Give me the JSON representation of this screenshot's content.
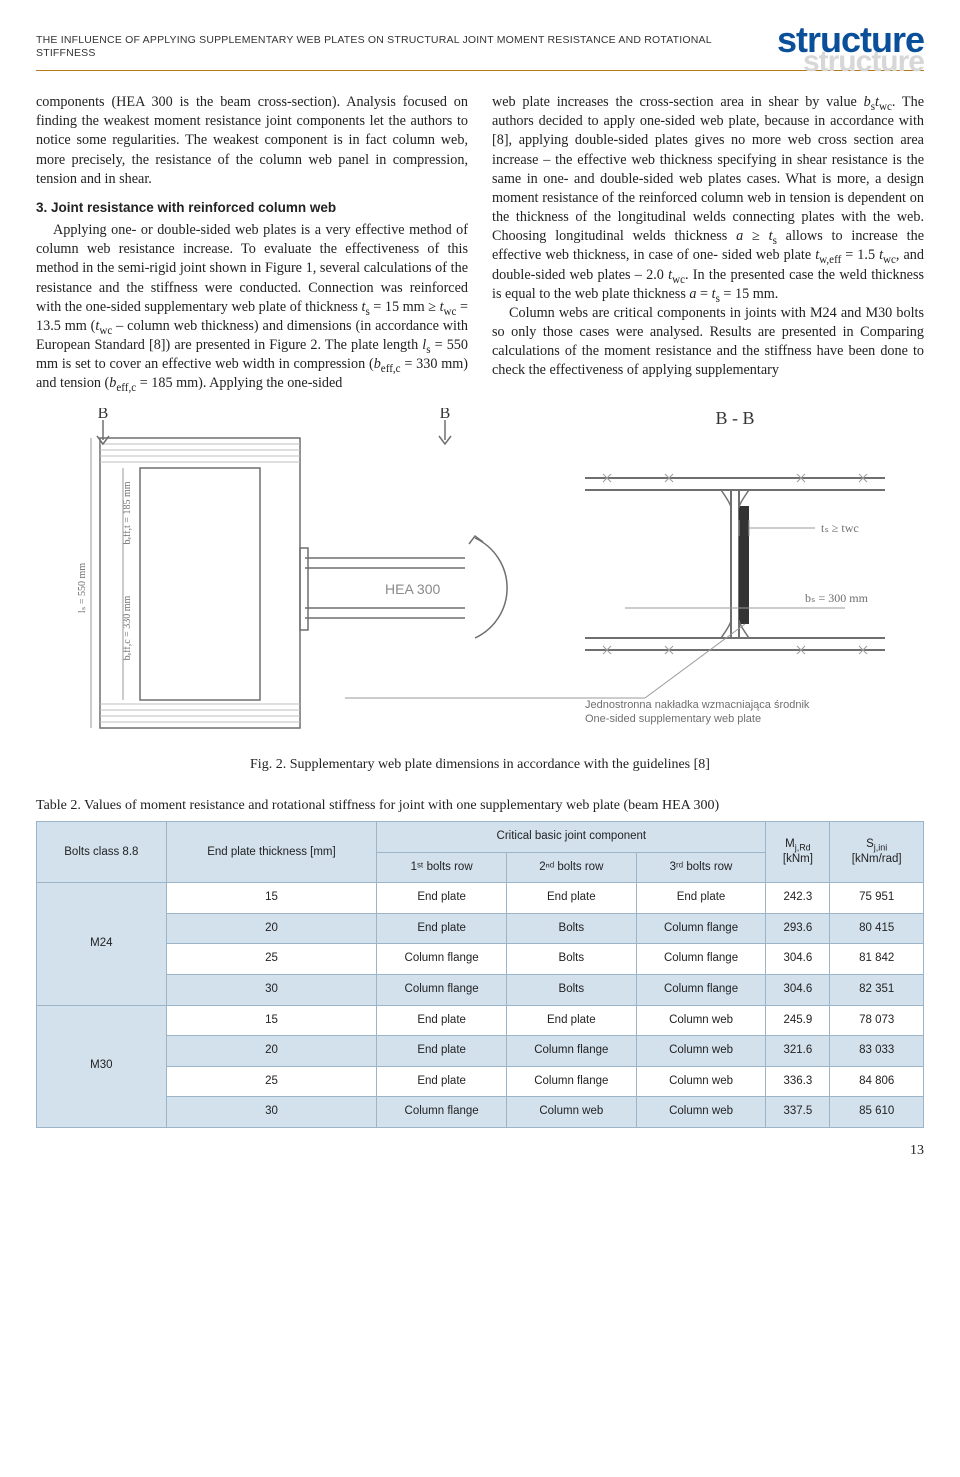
{
  "header": {
    "running_title": "THE INFLUENCE OF APPLYING SUPPLEMENTARY WEB PLATES ON STRUCTURAL JOINT MOMENT RESISTANCE AND ROTATIONAL STIFFNESS",
    "brand": "structure",
    "brand_shadow": "structure",
    "brand_color": "#0a4f9a",
    "rule_color": "#b47b1c"
  },
  "body": {
    "p1": "components (HEA 300 is the beam cross-section). Analysis focused on finding the weakest moment resistance joint components let the authors to notice some regularities. The weakest component is in fact column web, more precisely, the resistance of the column web panel in compression, tension and in shear.",
    "h3": "3. Joint resistance with reinforced column web",
    "p2a": "Applying one- or double-sided web plates is a very effective method of column web resistance increase. To evaluate the effectiveness of this method in the semi-rigid joint shown in Figure 1, several calculations of the resistance and the stiffness were conducted. Connection was reinforced with the one-sided supplementary web plate of thickness ",
    "p2b": " = 15 mm ≥ ",
    "p2c": " = 13.5 mm (",
    "p2d": " – column web thickness) and dimensions (in accordance with European Standard [8]) are presented in Figure 2. The plate length ",
    "p2e": " = 550 mm is set to cover an effective web width in compression (",
    "p2f": " = 330 mm) and tension (",
    "p2g": " = 185 mm). Applying the one-sided ",
    "p3a": "web plate increases the cross-section area in shear by value ",
    "p3b": ". The authors decided to apply one-sided web plate, because in accordance with [8], applying double-sided plates gives no more web cross section area increase – the effective web thickness specifying in shear resistance is the same in one- and double-sided web plates cases. What is more, a design moment resistance of the reinforced column web in tension is dependent on the thickness of the longitudinal welds connecting plates with the web. Choosing longitudinal welds thickness ",
    "p3c": " allows to increase the effective web thickness, in case of one- sided web plate ",
    "p3d": " = 1.5 ",
    "p3e": ", and double-sided web plates – 2.0 ",
    "p3f": ". In the presented case the weld thickness is equal to the web plate thickness ",
    "p3g": " = 15 mm.",
    "p4": "Column webs are critical components in joints with M24 and M30 bolts so only those cases were analysed. Results are presented in Comparing calculations of the moment resistance and the stiffness have been done to check the effectiveness of applying supplementary"
  },
  "figure": {
    "label_B": "B",
    "label_BB": "B - B",
    "hea": "HEA 300",
    "bs": "bₛ = 300 mm",
    "ts": "tₛ ≥ twc",
    "ls": "lₛ = 550 mm",
    "beffc": "bₑff,c = 330 mm",
    "befft": "bₑff,t = 185 mm",
    "note_pl": "Jednostronna nakładka wzmacniająca środnik",
    "note_en": "One-sided supplementary web plate",
    "caption": "Fig. 2. Supplementary web plate dimensions in accordance with the guidelines [8]",
    "colors": {
      "stroke": "#6f6f6f",
      "hatch": "#9a9a9a",
      "text": "#6f6f6f",
      "light": "#bfbfbf"
    }
  },
  "table": {
    "caption": "Table 2. Values of moment resistance and rotational stiffness for joint with one supplementary web plate (beam HEA 300)",
    "head": {
      "bolts": "Bolts class 8.8",
      "endplate": "End plate thickness [mm]",
      "critical": "Critical basic joint component",
      "row1": "1ˢᵗ bolts row",
      "row2": "2ⁿᵈ bolts row",
      "row3": "3ʳᵈ bolts row",
      "M": "M",
      "M_sub": "j,Rd",
      "M_unit": "[kNm]",
      "S": "S",
      "S_sub": "j,ini",
      "S_unit": "[kNm/rad]"
    },
    "groups": [
      {
        "bolt": "M24",
        "rows": [
          {
            "t": "15",
            "c1": "End plate",
            "c2": "End plate",
            "c3": "End plate",
            "m": "242.3",
            "s": "75 951",
            "cls": "odd"
          },
          {
            "t": "20",
            "c1": "End plate",
            "c2": "Bolts",
            "c3": "Column flange",
            "m": "293.6",
            "s": "80 415",
            "cls": "even"
          },
          {
            "t": "25",
            "c1": "Column flange",
            "c2": "Bolts",
            "c3": "Column flange",
            "m": "304.6",
            "s": "81 842",
            "cls": "odd"
          },
          {
            "t": "30",
            "c1": "Column flange",
            "c2": "Bolts",
            "c3": "Column flange",
            "m": "304.6",
            "s": "82 351",
            "cls": "even"
          }
        ]
      },
      {
        "bolt": "M30",
        "rows": [
          {
            "t": "15",
            "c1": "End plate",
            "c2": "End plate",
            "c3": "Column web",
            "m": "245.9",
            "s": "78 073",
            "cls": "odd"
          },
          {
            "t": "20",
            "c1": "End plate",
            "c2": "Column flange",
            "c3": "Column web",
            "m": "321.6",
            "s": "83 033",
            "cls": "even"
          },
          {
            "t": "25",
            "c1": "End plate",
            "c2": "Column flange",
            "c3": "Column web",
            "m": "336.3",
            "s": "84 806",
            "cls": "odd"
          },
          {
            "t": "30",
            "c1": "Column flange",
            "c2": "Column web",
            "c3": "Column web",
            "m": "337.5",
            "s": "85 610",
            "cls": "even"
          }
        ]
      }
    ]
  },
  "pagenum": "13"
}
